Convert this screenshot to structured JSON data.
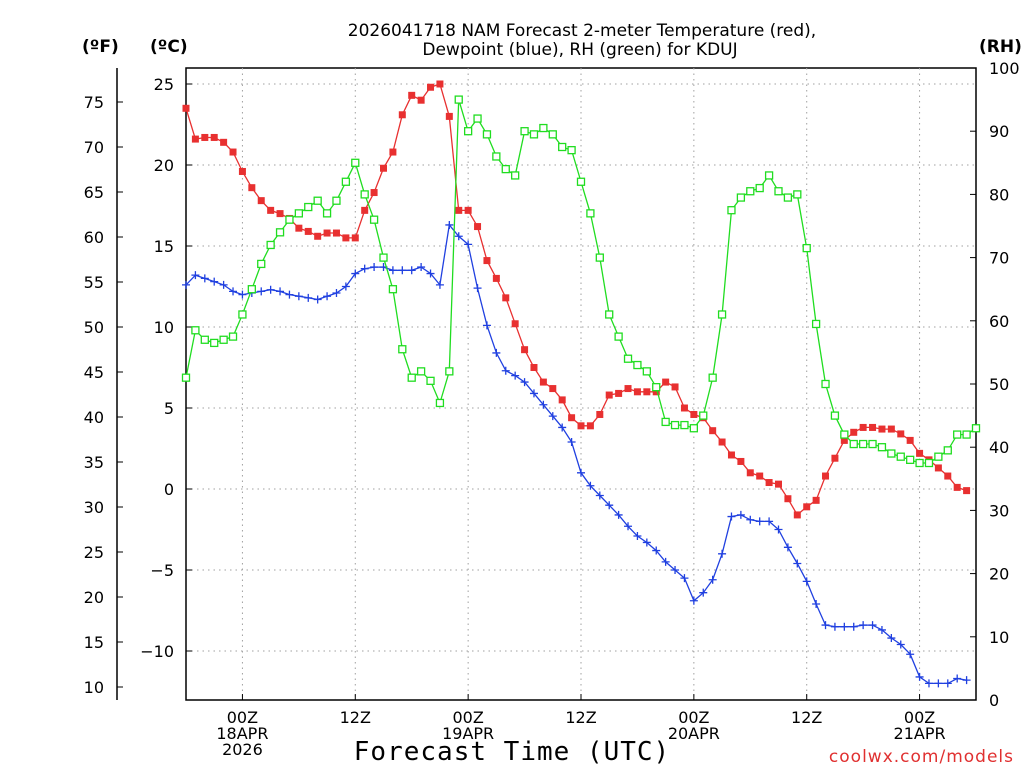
{
  "chart_data": {
    "type": "line",
    "title_line1": "2026041718 NAM Forecast 2-meter Temperature (red),",
    "title_line2": "Dewpoint (blue), RH (green) for KDUJ",
    "xlabel": "Forecast Time (UTC)",
    "unit_left_f": "(ºF)",
    "unit_left_c": "(ºC)",
    "unit_right": "(RH)",
    "credit": "coolwx.com/models",
    "x_range_hours": [
      0,
      84
    ],
    "x_start": "2026-04-17T18:00Z",
    "x_step_hours": 1,
    "celsius_ticks": [
      "25",
      "20",
      "15",
      "10",
      "5",
      "0",
      "−5",
      "−10"
    ],
    "celsius_tick_values": [
      25,
      20,
      15,
      10,
      5,
      0,
      -5,
      -10
    ],
    "fahrenheit_ticks": [
      "75",
      "70",
      "65",
      "60",
      "55",
      "50",
      "45",
      "40",
      "35",
      "30",
      "25",
      "20",
      "15",
      "10"
    ],
    "fahrenheit_tick_values": [
      75,
      70,
      65,
      60,
      55,
      50,
      45,
      40,
      35,
      30,
      25,
      20,
      15,
      10
    ],
    "rh_ticks": [
      "100",
      "90",
      "80",
      "70",
      "60",
      "50",
      "40",
      "30",
      "20",
      "10",
      "0"
    ],
    "rh_tick_values": [
      100,
      90,
      80,
      70,
      60,
      50,
      40,
      30,
      20,
      10,
      0
    ],
    "ylim_celsius": [
      -13,
      26
    ],
    "ylim_rh": [
      0,
      100
    ],
    "x_ticks": [
      {
        "hour": 6,
        "line1": "00Z",
        "line2": "18APR",
        "line3": "2026"
      },
      {
        "hour": 18,
        "line1": "12Z",
        "line2": "",
        "line3": ""
      },
      {
        "hour": 30,
        "line1": "00Z",
        "line2": "19APR",
        "line3": ""
      },
      {
        "hour": 42,
        "line1": "12Z",
        "line2": "",
        "line3": ""
      },
      {
        "hour": 54,
        "line1": "00Z",
        "line2": "20APR",
        "line3": ""
      },
      {
        "hour": 66,
        "line1": "12Z",
        "line2": "",
        "line3": ""
      },
      {
        "hour": 78,
        "line1": "00Z",
        "line2": "21APR",
        "line3": ""
      }
    ],
    "series": [
      {
        "name": "Temperature (°C)",
        "color": "#e83030",
        "marker": "filled-square",
        "axis": "celsius",
        "values": [
          23.5,
          21.6,
          21.7,
          21.7,
          21.4,
          20.8,
          19.6,
          18.6,
          17.8,
          17.2,
          17.0,
          16.7,
          16.1,
          15.9,
          15.6,
          15.8,
          15.8,
          15.5,
          15.5,
          17.2,
          18.3,
          19.8,
          20.8,
          23.1,
          24.3,
          24.0,
          24.8,
          25.0,
          23.0,
          17.2,
          17.2,
          16.2,
          14.1,
          13.0,
          11.8,
          10.2,
          8.6,
          7.5,
          6.6,
          6.2,
          5.5,
          4.4,
          3.9,
          3.9,
          4.6,
          5.8,
          5.9,
          6.2,
          6.0,
          6.0,
          6.0,
          6.6,
          6.3,
          5.0,
          4.6,
          4.4,
          3.6,
          2.9,
          2.1,
          1.7,
          1.0,
          0.8,
          0.4,
          0.3,
          -0.6,
          -1.6,
          -1.1,
          -0.7,
          0.8,
          1.9,
          3.0,
          3.5,
          3.8,
          3.8,
          3.7,
          3.7,
          3.4,
          3.0,
          2.2,
          1.8,
          1.3,
          0.8,
          0.1,
          -0.1
        ]
      },
      {
        "name": "Dewpoint (°C)",
        "color": "#2040e0",
        "marker": "plus",
        "axis": "celsius",
        "values": [
          12.6,
          13.2,
          13.0,
          12.8,
          12.6,
          12.2,
          12.0,
          12.1,
          12.2,
          12.3,
          12.2,
          12.0,
          11.9,
          11.8,
          11.7,
          11.9,
          12.1,
          12.5,
          13.3,
          13.6,
          13.7,
          13.7,
          13.5,
          13.5,
          13.5,
          13.7,
          13.3,
          12.6,
          16.3,
          15.6,
          15.1,
          12.4,
          10.1,
          8.4,
          7.3,
          7.0,
          6.6,
          5.9,
          5.2,
          4.5,
          3.8,
          2.9,
          1.0,
          0.2,
          -0.4,
          -1.0,
          -1.6,
          -2.3,
          -2.9,
          -3.3,
          -3.8,
          -4.5,
          -5.0,
          -5.5,
          -6.9,
          -6.4,
          -5.6,
          -4.0,
          -1.7,
          -1.6,
          -1.9,
          -2.0,
          -2.0,
          -2.5,
          -3.6,
          -4.6,
          -5.7,
          -7.1,
          -8.4,
          -8.5,
          -8.5,
          -8.5,
          -8.4,
          -8.4,
          -8.7,
          -9.2,
          -9.6,
          -10.2,
          -11.6,
          -12.0,
          -12.0,
          -12.0,
          -11.7,
          -11.8
        ]
      },
      {
        "name": "RH (%)",
        "color": "#20dd20",
        "marker": "open-square",
        "axis": "rh",
        "values": [
          51,
          58.5,
          57,
          56.5,
          57,
          57.5,
          61,
          65,
          69,
          72,
          74,
          76,
          77,
          78,
          79,
          77,
          79,
          82,
          85,
          80,
          76,
          70,
          65,
          55.5,
          51,
          52,
          50.5,
          47,
          52,
          95,
          90,
          92,
          89.5,
          86,
          84,
          83,
          90,
          89.5,
          90.5,
          89.5,
          87.5,
          87,
          82,
          77,
          70,
          61,
          57.5,
          54,
          53,
          52,
          49.5,
          44,
          43.5,
          43.5,
          43,
          45,
          51,
          61,
          77.5,
          79.5,
          80.5,
          81,
          83,
          80.5,
          79.5,
          80,
          71.5,
          59.5,
          50,
          45,
          42,
          40.5,
          40.5,
          40.5,
          40,
          39,
          38.5,
          38,
          37.5,
          37.5,
          38.5,
          39.5,
          42,
          42,
          43
        ]
      }
    ]
  }
}
